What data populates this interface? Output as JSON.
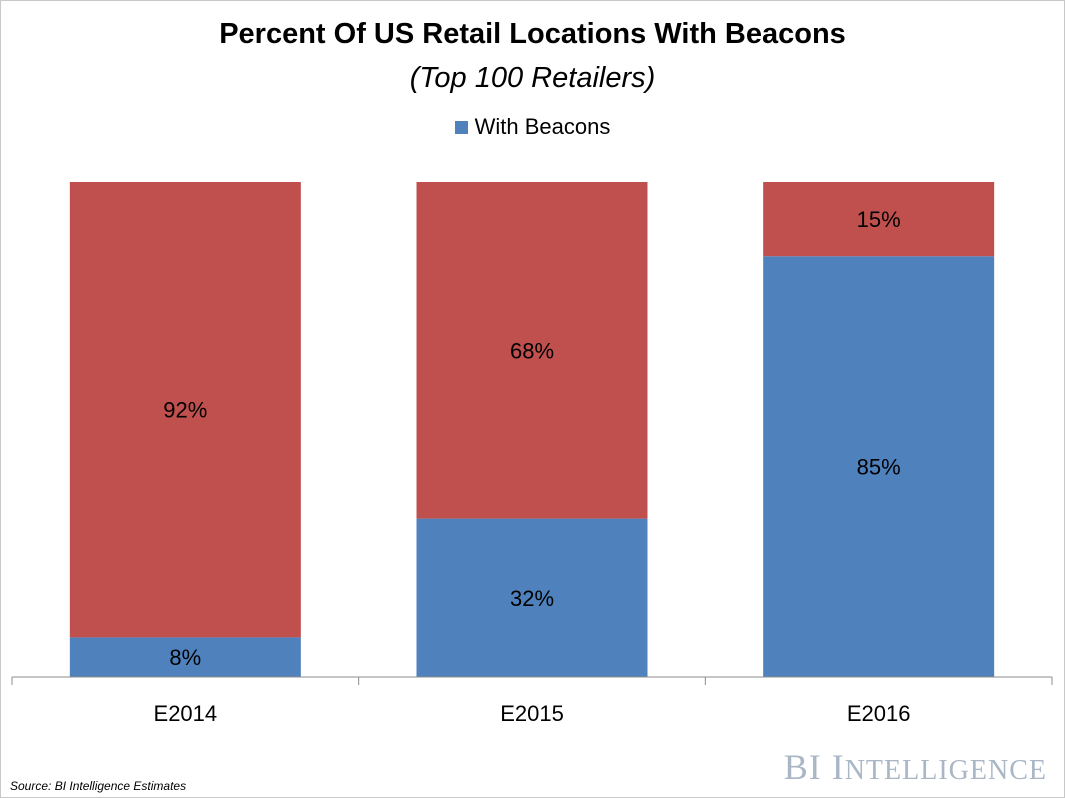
{
  "chart_data": {
    "type": "bar",
    "stacked": true,
    "title": "Percent Of US Retail Locations With Beacons",
    "subtitle": "(Top 100 Retailers)",
    "categories": [
      "E2014",
      "E2015",
      "E2016"
    ],
    "series": [
      {
        "name": "With Beacons",
        "values": [
          8,
          32,
          85
        ],
        "labels": [
          "8%",
          "32%",
          "85%"
        ],
        "color": "#4f81bd",
        "in_legend": true
      },
      {
        "values": [
          92,
          68,
          15
        ],
        "labels": [
          "92%",
          "68%",
          "15%"
        ],
        "color": "#c0504d",
        "in_legend": false
      }
    ],
    "ylim": [
      0,
      100
    ],
    "grid": false,
    "legend_position": "top-center",
    "xlabel": "",
    "ylabel": ""
  },
  "footer": {
    "source": "Source: BI Intelligence Estimates",
    "brand_b": "BI",
    "brand_i": "I",
    "brand_rest": "NTELLIGENCE"
  }
}
